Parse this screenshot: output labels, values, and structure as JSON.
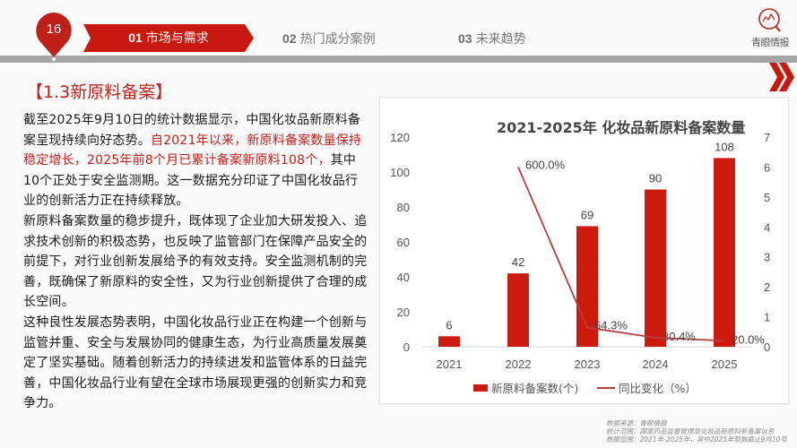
{
  "header": {
    "page_number": "16",
    "nav": [
      {
        "num": "01",
        "label": "市场与需求",
        "active": true
      },
      {
        "num": "02",
        "label": "热门成分案例",
        "active": false
      },
      {
        "num": "03",
        "label": "未来趋势",
        "active": false
      }
    ],
    "logo_text": "青眼情报",
    "logo_icon": "magnifier-chart-icon",
    "next_icon": "double-chevron-right-icon"
  },
  "colors": {
    "accent_red": "#c0201a",
    "bar_red": "#cc1a0f",
    "line_red": "#b5403a",
    "gray_bar": "#a6a6a6"
  },
  "section": {
    "title": "【1.3新原料备案】"
  },
  "body": {
    "p1_a": "截至2025年9月10日的统计数据显示，中国化妆品新原料备案呈现持续向好态势。",
    "p1_highlight": "自2021年以来，新原料备案数量保持稳定增长，2025年前8个月已累计备案新原料108个，",
    "p1_b": "其中10个正处于安全监测期。这一数据充分印证了中国化妆品行业的创新活力正在持续释放。",
    "p2": "新原料备案数量的稳步提升，既体现了企业加大研发投入、追求技术创新的积极态势，也反映了监管部门在保障产品安全的前提下，对行业创新发展给予的有效支持。安全监测机制的完善，既确保了新原料的安全性，又为行业创新提供了合理的成长空间。",
    "p3": "这种良性发展态势表明，中国化妆品行业正在构建一个创新与监管并重、安全与发展协同的健康生态，为行业高质量发展奠定了坚实基础。随着创新活力的持续进发和监管体系的日益完善，中国化妆品行业有望在全球市场展现更强的创新实力和竞争力。"
  },
  "chart_data": {
    "type": "bar",
    "title": "2021-2025年 化妆品新原料备案数量",
    "categories": [
      "2021",
      "2022",
      "2023",
      "2024",
      "2025"
    ],
    "series": [
      {
        "name": "新原料备案数(个)",
        "type": "bar",
        "axis": "left",
        "values": [
          6,
          42,
          69,
          90,
          108
        ],
        "labels": [
          "6",
          "42",
          "69",
          "90",
          "108"
        ]
      },
      {
        "name": "同比变化（%）",
        "type": "line",
        "axis": "right",
        "values": [
          null,
          6.0,
          0.643,
          0.304,
          0.2
        ],
        "labels": [
          "",
          "600.0%",
          "64.3%",
          "30.4%",
          "20.0%"
        ]
      }
    ],
    "y_left": {
      "ticks": [
        "0",
        "20",
        "40",
        "60",
        "80",
        "100",
        "120"
      ],
      "ylim": [
        0,
        120
      ]
    },
    "y_right": {
      "ticks": [
        "0",
        "1",
        "2",
        "3",
        "4",
        "5",
        "6",
        "7"
      ],
      "ylim": [
        0,
        7
      ]
    },
    "legend": {
      "position": "bottom",
      "entries": [
        "新原料备案数(个)",
        "同比变化（%）"
      ]
    },
    "grid": false,
    "xlabel": "",
    "ylabel": ""
  },
  "source": {
    "line1": "数据来源：青眼情报",
    "line2": "统计范围：国家药品监督管理局化妆品新原料新备案信息",
    "line3": "数据范围：2021年-2025年，其中2025年取数截止9月10号"
  }
}
